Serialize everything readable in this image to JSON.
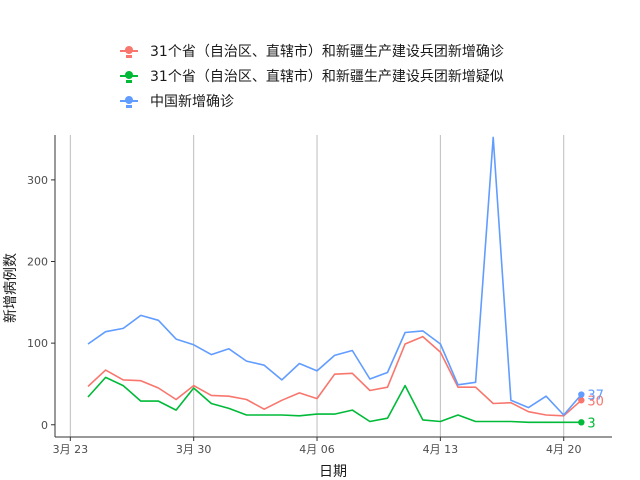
{
  "chart_data": {
    "type": "line",
    "xlabel": "日期",
    "ylabel": "新增病例数",
    "ylim": [
      -15,
      355
    ],
    "y_ticks": [
      0,
      100,
      200,
      300
    ],
    "x_ticks": [
      {
        "label": "3月 23",
        "date": "2020-03-23"
      },
      {
        "label": "3月 30",
        "date": "2020-03-30"
      },
      {
        "label": "4月 06",
        "date": "2020-04-06"
      },
      {
        "label": "4月 13",
        "date": "2020-04-13"
      },
      {
        "label": "4月 20",
        "date": "2020-04-20"
      }
    ],
    "x": [
      "2020-03-24",
      "2020-03-25",
      "2020-03-26",
      "2020-03-27",
      "2020-03-28",
      "2020-03-29",
      "2020-03-30",
      "2020-03-31",
      "2020-04-01",
      "2020-04-02",
      "2020-04-03",
      "2020-04-04",
      "2020-04-05",
      "2020-04-06",
      "2020-04-07",
      "2020-04-08",
      "2020-04-09",
      "2020-04-10",
      "2020-04-11",
      "2020-04-12",
      "2020-04-13",
      "2020-04-14",
      "2020-04-15",
      "2020-04-16",
      "2020-04-17",
      "2020-04-18",
      "2020-04-19",
      "2020-04-20",
      "2020-04-21"
    ],
    "grid": true,
    "legend_position": "top",
    "series": [
      {
        "name": "31个省（自治区、直辖市）和新疆生产建设兵团新增确诊",
        "color": "#f8766d",
        "values": [
          47,
          67,
          55,
          54,
          45,
          31,
          48,
          36,
          35,
          31,
          19,
          30,
          39,
          32,
          62,
          63,
          42,
          46,
          99,
          108,
          89,
          46,
          46,
          26,
          27,
          16,
          12,
          11,
          30
        ],
        "end_label": "30"
      },
      {
        "name": "31个省（自治区、直辖市）和新疆生产建设兵团新增疑似",
        "color": "#00ba38",
        "values": [
          34,
          58,
          48,
          29,
          29,
          18,
          45,
          26,
          20,
          12,
          12,
          12,
          11,
          13,
          13,
          18,
          4,
          8,
          48,
          6,
          4,
          12,
          4,
          4,
          4,
          3,
          3,
          3,
          3
        ],
        "end_label": "3"
      },
      {
        "name": "中国新增确诊",
        "color": "#619cff",
        "values": [
          99,
          114,
          118,
          134,
          128,
          105,
          98,
          86,
          93,
          78,
          73,
          55,
          75,
          66,
          85,
          91,
          56,
          64,
          113,
          115,
          99,
          49,
          52,
          352,
          30,
          21,
          35,
          12,
          37
        ],
        "end_label": "37"
      }
    ]
  }
}
